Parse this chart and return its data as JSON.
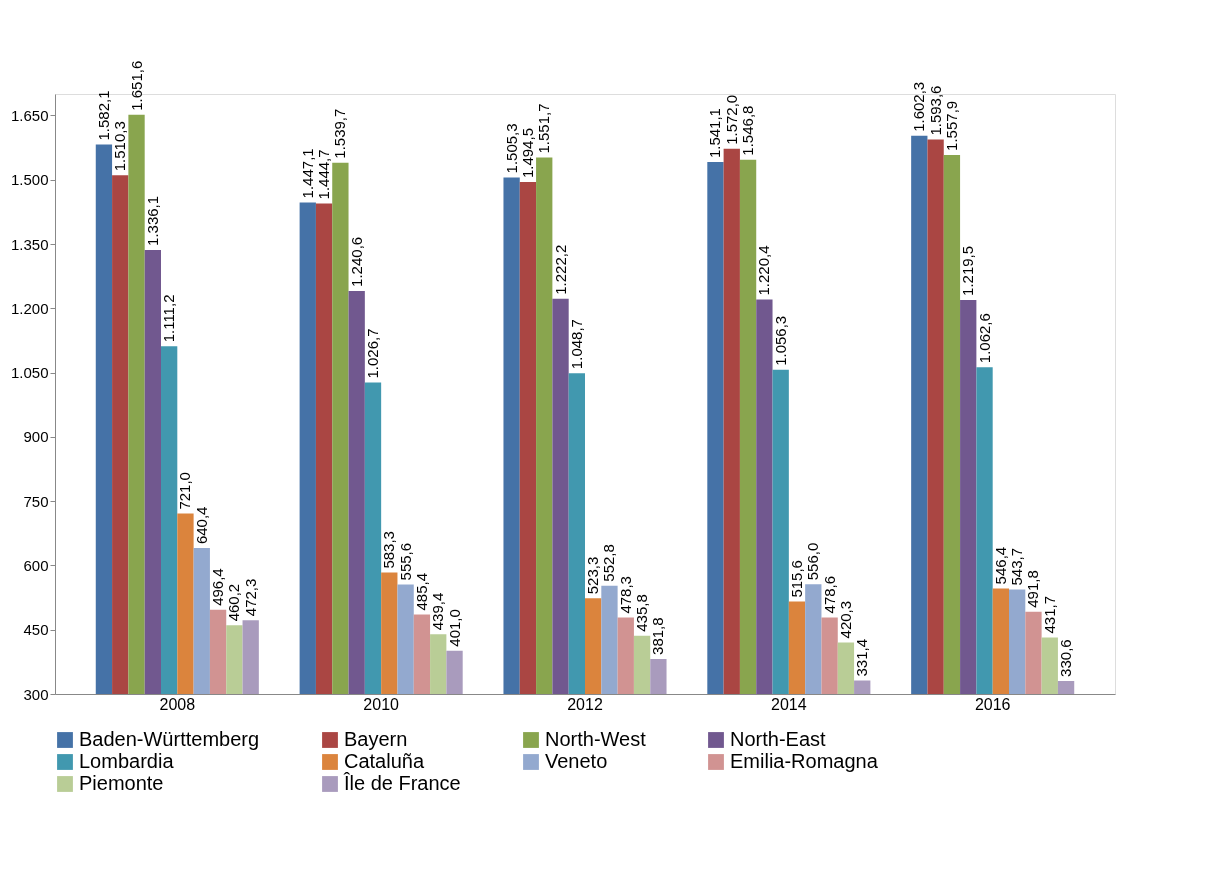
{
  "chart_data": {
    "type": "bar",
    "categories": [
      "2008",
      "2010",
      "2012",
      "2014",
      "2016"
    ],
    "ylim": [
      300,
      1700
    ],
    "yticks": [
      {
        "value": 300,
        "label": "300"
      },
      {
        "value": 450,
        "label": "450"
      },
      {
        "value": 600,
        "label": "600"
      },
      {
        "value": 750,
        "label": "750"
      },
      {
        "value": 900,
        "label": "900"
      },
      {
        "value": 1050,
        "label": "1.050"
      },
      {
        "value": 1200,
        "label": "1.200"
      },
      {
        "value": 1350,
        "label": "1.350"
      },
      {
        "value": 1500,
        "label": "1.500"
      },
      {
        "value": 1650,
        "label": "1.650"
      }
    ],
    "grid": false,
    "legend": "bottom",
    "series": [
      {
        "name": "Baden-Württemberg",
        "color": "#4572a7",
        "values": [
          1582.1,
          1447.1,
          1505.3,
          1541.1,
          1602.3
        ],
        "value_labels": [
          "1.582,1",
          "1.447,1",
          "1.505,3",
          "1.541,1",
          "1.602,3"
        ]
      },
      {
        "name": "Bayern",
        "color": "#aa4643",
        "values": [
          1510.3,
          1444.7,
          1494.5,
          1572.0,
          1593.6
        ],
        "value_labels": [
          "1.510,3",
          "1.444,7",
          "1.494,5",
          "1.572,0",
          "1.593,6"
        ]
      },
      {
        "name": "North-West",
        "color": "#89a54e",
        "values": [
          1651.6,
          1539.7,
          1551.7,
          1546.8,
          1557.9
        ],
        "value_labels": [
          "1.651,6",
          "1.539,7",
          "1.551,7",
          "1.546,8",
          "1.557,9"
        ]
      },
      {
        "name": "North-East",
        "color": "#71588f",
        "values": [
          1336.1,
          1240.6,
          1222.2,
          1220.4,
          1219.5
        ],
        "value_labels": [
          "1.336,1",
          "1.240,6",
          "1.222,2",
          "1.220,4",
          "1.219,5"
        ]
      },
      {
        "name": "Lombardia",
        "color": "#4198af",
        "values": [
          1111.2,
          1026.7,
          1048.7,
          1056.3,
          1062.6
        ],
        "value_labels": [
          "1.111,2",
          "1.026,7",
          "1.048,7",
          "1.056,3",
          "1.062,6"
        ]
      },
      {
        "name": "Cataluña",
        "color": "#db843d",
        "values": [
          721.0,
          583.3,
          523.3,
          515.6,
          546.4
        ],
        "value_labels": [
          "721,0",
          "583,3",
          "523,3",
          "515,6",
          "546,4"
        ]
      },
      {
        "name": "Veneto",
        "color": "#93a9cf",
        "values": [
          640.4,
          555.6,
          552.8,
          556.0,
          543.7
        ],
        "value_labels": [
          "640,4",
          "555,6",
          "552,8",
          "556,0",
          "543,7"
        ]
      },
      {
        "name": "Emilia-Romagna",
        "color": "#d19392",
        "values": [
          496.4,
          485.4,
          478.3,
          478.6,
          491.8
        ],
        "value_labels": [
          "496,4",
          "485,4",
          "478,3",
          "478,6",
          "491,8"
        ]
      },
      {
        "name": "Piemonte",
        "color": "#b9cd96",
        "values": [
          460.2,
          439.4,
          435.8,
          420.3,
          431.7
        ],
        "value_labels": [
          "460,2",
          "439,4",
          "435,8",
          "420,3",
          "431,7"
        ]
      },
      {
        "name": "Île de France",
        "color": "#a99bbd",
        "values": [
          472.3,
          401.0,
          381.8,
          331.4,
          330.6
        ],
        "value_labels": [
          "472,3",
          "401,0",
          "381,8",
          "331,4",
          "330,6"
        ]
      }
    ]
  }
}
